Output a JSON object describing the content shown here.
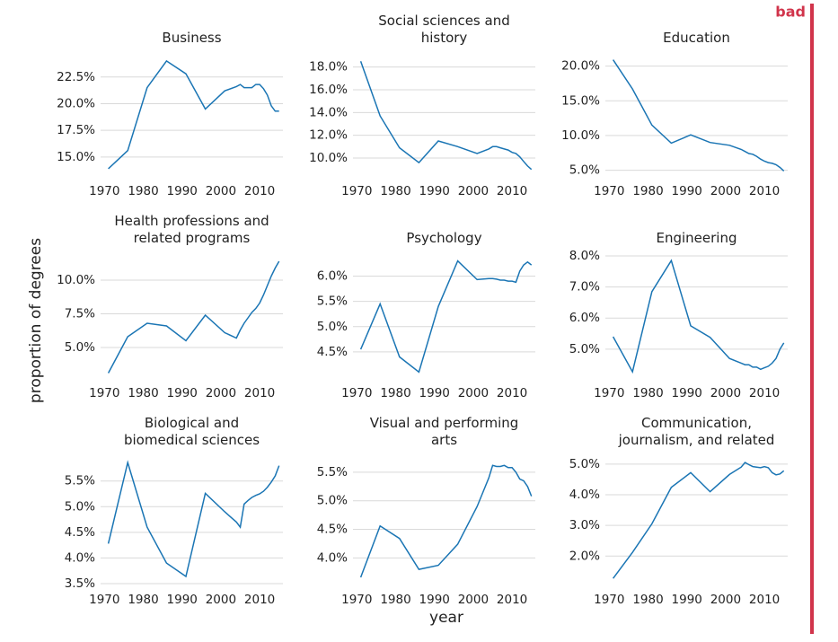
{
  "chart_data": [
    {
      "type": "line",
      "title": "Business",
      "x": [
        1971,
        1976,
        1981,
        1986,
        1991,
        1996,
        2001,
        2004,
        2005,
        2006,
        2007,
        2008,
        2009,
        2010,
        2011,
        2012,
        2013,
        2014,
        2015
      ],
      "values": [
        13.9,
        15.6,
        21.5,
        24.0,
        22.8,
        19.5,
        21.2,
        21.6,
        21.8,
        21.5,
        21.5,
        21.5,
        21.8,
        21.8,
        21.4,
        20.8,
        19.8,
        19.3,
        19.3
      ],
      "color": "#1a75b4",
      "xlim": [
        1969,
        2016
      ],
      "xticks": [
        1970,
        1980,
        1990,
        2000,
        2010
      ],
      "ylim": [
        13.3,
        24.5
      ],
      "yticks": [
        {
          "value": 15,
          "label": "15.0%"
        },
        {
          "value": 17.5,
          "label": "17.5%"
        },
        {
          "value": 20,
          "label": "20.0%"
        },
        {
          "value": 22.5,
          "label": "22.5%"
        }
      ],
      "grid": true
    },
    {
      "type": "line",
      "title": "Social sciences and history",
      "x": [
        1971,
        1976,
        1981,
        1986,
        1991,
        1996,
        2001,
        2004,
        2005,
        2006,
        2007,
        2008,
        2009,
        2010,
        2011,
        2012,
        2013,
        2014,
        2015
      ],
      "values": [
        18.5,
        13.7,
        10.9,
        9.6,
        11.5,
        11.0,
        10.4,
        10.8,
        11.0,
        11.0,
        10.9,
        10.8,
        10.7,
        10.5,
        10.4,
        10.1,
        9.7,
        9.3,
        9.0
      ],
      "color": "#1a75b4",
      "xlim": [
        1969,
        2016
      ],
      "xticks": [
        1970,
        1980,
        1990,
        2000,
        2010
      ],
      "ylim": [
        8.5,
        19
      ],
      "yticks": [
        {
          "value": 10,
          "label": "10.0%"
        },
        {
          "value": 12,
          "label": "12.0%"
        },
        {
          "value": 14,
          "label": "14.0%"
        },
        {
          "value": 16,
          "label": "16.0%"
        },
        {
          "value": 18,
          "label": "18.0%"
        }
      ],
      "grid": true
    },
    {
      "type": "line",
      "title": "Education",
      "x": [
        1971,
        1976,
        1981,
        1986,
        1991,
        1996,
        2001,
        2004,
        2005,
        2006,
        2007,
        2008,
        2009,
        2010,
        2011,
        2012,
        2013,
        2014,
        2015
      ],
      "values": [
        20.9,
        16.7,
        11.5,
        8.9,
        10.1,
        9.0,
        8.6,
        8.0,
        7.7,
        7.4,
        7.3,
        7.0,
        6.6,
        6.3,
        6.1,
        6.0,
        5.8,
        5.4,
        4.9
      ],
      "color": "#1a75b4",
      "xlim": [
        1969,
        2016
      ],
      "xticks": [
        1970,
        1980,
        1990,
        2000,
        2010
      ],
      "ylim": [
        4.3,
        21.5
      ],
      "yticks": [
        {
          "value": 5,
          "label": "5.0%"
        },
        {
          "value": 10,
          "label": "10.0%"
        },
        {
          "value": 15,
          "label": "15.0%"
        },
        {
          "value": 20,
          "label": "20.0%"
        }
      ],
      "grid": true
    },
    {
      "type": "line",
      "title": "Health professions and related programs",
      "x": [
        1971,
        1976,
        1981,
        1986,
        1991,
        1996,
        2001,
        2004,
        2005,
        2006,
        2007,
        2008,
        2009,
        2010,
        2011,
        2012,
        2013,
        2014,
        2015
      ],
      "values": [
        3.1,
        5.8,
        6.8,
        6.6,
        5.5,
        7.4,
        6.1,
        5.7,
        6.3,
        6.8,
        7.2,
        7.6,
        7.9,
        8.3,
        8.9,
        9.6,
        10.3,
        10.9,
        11.4
      ],
      "color": "#1a75b4",
      "xlim": [
        1969,
        2016
      ],
      "xticks": [
        1970,
        1980,
        1990,
        2000,
        2010
      ],
      "ylim": [
        2.8,
        11.8
      ],
      "yticks": [
        {
          "value": 5,
          "label": "5.0%"
        },
        {
          "value": 7.5,
          "label": "7.5%"
        },
        {
          "value": 10,
          "label": "10.0%"
        }
      ],
      "grid": true
    },
    {
      "type": "line",
      "title": "Psychology",
      "x": [
        1971,
        1976,
        1981,
        1986,
        1991,
        1996,
        2001,
        2004,
        2005,
        2006,
        2007,
        2008,
        2009,
        2010,
        2011,
        2012,
        2013,
        2014,
        2015
      ],
      "values": [
        4.55,
        5.45,
        4.4,
        4.1,
        5.4,
        6.3,
        5.93,
        5.95,
        5.95,
        5.94,
        5.92,
        5.92,
        5.9,
        5.9,
        5.88,
        6.1,
        6.22,
        6.28,
        6.22
      ],
      "color": "#1a75b4",
      "xlim": [
        1969,
        2016
      ],
      "xticks": [
        1970,
        1980,
        1990,
        2000,
        2010
      ],
      "ylim": [
        4.0,
        6.4
      ],
      "yticks": [
        {
          "value": 4.5,
          "label": "4.5%"
        },
        {
          "value": 5,
          "label": "5.0%"
        },
        {
          "value": 5.5,
          "label": "5.5%"
        },
        {
          "value": 6,
          "label": "6.0%"
        }
      ],
      "grid": true
    },
    {
      "type": "line",
      "title": "Engineering",
      "x": [
        1971,
        1976,
        1981,
        1986,
        1991,
        1996,
        2001,
        2004,
        2005,
        2006,
        2007,
        2008,
        2009,
        2010,
        2011,
        2012,
        2013,
        2014,
        2015
      ],
      "values": [
        5.4,
        4.27,
        6.85,
        7.85,
        5.75,
        5.38,
        4.7,
        4.55,
        4.5,
        4.5,
        4.42,
        4.42,
        4.35,
        4.4,
        4.45,
        4.55,
        4.7,
        5.0,
        5.2
      ],
      "color": "#1a75b4",
      "xlim": [
        1969,
        2016
      ],
      "xticks": [
        1970,
        1980,
        1990,
        2000,
        2010
      ],
      "ylim": [
        4.1,
        8.0
      ],
      "yticks": [
        {
          "value": 5,
          "label": "5.0%"
        },
        {
          "value": 6,
          "label": "6.0%"
        },
        {
          "value": 7,
          "label": "7.0%"
        },
        {
          "value": 8,
          "label": "8.0%"
        }
      ],
      "grid": true
    },
    {
      "type": "line",
      "title": "Biological and biomedical sciences",
      "x": [
        1971,
        1976,
        1981,
        1986,
        1991,
        1996,
        2001,
        2004,
        2005,
        2006,
        2007,
        2008,
        2009,
        2010,
        2011,
        2012,
        2013,
        2014,
        2015
      ],
      "values": [
        4.28,
        5.86,
        4.6,
        3.9,
        3.64,
        5.26,
        4.9,
        4.7,
        4.6,
        5.05,
        5.12,
        5.18,
        5.22,
        5.25,
        5.3,
        5.38,
        5.48,
        5.6,
        5.8
      ],
      "color": "#1a75b4",
      "xlim": [
        1969,
        2016
      ],
      "xticks": [
        1970,
        1980,
        1990,
        2000,
        2010
      ],
      "ylim": [
        3.5,
        5.95
      ],
      "yticks": [
        {
          "value": 3.5,
          "label": "3.5%"
        },
        {
          "value": 4,
          "label": "4.0%"
        },
        {
          "value": 4.5,
          "label": "4.5%"
        },
        {
          "value": 5,
          "label": "5.0%"
        },
        {
          "value": 5.5,
          "label": "5.5%"
        }
      ],
      "grid": true
    },
    {
      "type": "line",
      "title": "Visual and performing arts",
      "x": [
        1971,
        1976,
        1981,
        1986,
        1991,
        1996,
        2001,
        2004,
        2005,
        2006,
        2007,
        2008,
        2009,
        2010,
        2011,
        2012,
        2013,
        2014,
        2015
      ],
      "values": [
        3.66,
        4.56,
        4.34,
        3.8,
        3.87,
        4.24,
        4.9,
        5.4,
        5.62,
        5.6,
        5.6,
        5.62,
        5.58,
        5.58,
        5.5,
        5.38,
        5.35,
        5.25,
        5.08
      ],
      "color": "#1a75b4",
      "xlim": [
        1969,
        2016
      ],
      "xticks": [
        1970,
        1980,
        1990,
        2000,
        2010
      ],
      "ylim": [
        3.55,
        5.75
      ],
      "yticks": [
        {
          "value": 4,
          "label": "4.0%"
        },
        {
          "value": 4.5,
          "label": "4.5%"
        },
        {
          "value": 5,
          "label": "5.0%"
        },
        {
          "value": 5.5,
          "label": "5.5%"
        }
      ],
      "grid": true
    },
    {
      "type": "line",
      "title": "Communication, journalism, and related",
      "x": [
        1971,
        1976,
        1981,
        1986,
        1991,
        1996,
        2001,
        2004,
        2005,
        2006,
        2007,
        2008,
        2009,
        2010,
        2011,
        2012,
        2013,
        2014,
        2015
      ],
      "values": [
        1.27,
        2.12,
        3.05,
        4.24,
        4.72,
        4.1,
        4.66,
        4.9,
        5.05,
        4.98,
        4.92,
        4.9,
        4.88,
        4.92,
        4.88,
        4.72,
        4.65,
        4.68,
        4.78
      ],
      "color": "#1a75b4",
      "xlim": [
        1969,
        2016
      ],
      "xticks": [
        1970,
        1980,
        1990,
        2000,
        2010
      ],
      "ylim": [
        1.1,
        5.2
      ],
      "yticks": [
        {
          "value": 2,
          "label": "2.0%"
        },
        {
          "value": 3,
          "label": "3.0%"
        },
        {
          "value": 4,
          "label": "4.0%"
        },
        {
          "value": 5,
          "label": "5.0%"
        }
      ],
      "grid": true
    }
  ],
  "ylabel": "proportion of degrees",
  "xlabel": "year",
  "verdict": {
    "label": "bad",
    "color": "#d1344b"
  }
}
